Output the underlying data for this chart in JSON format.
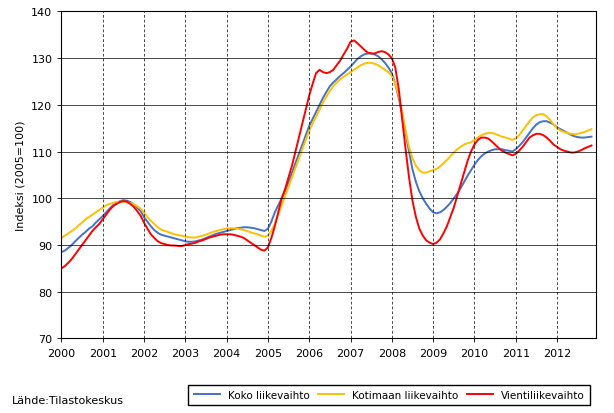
{
  "title": "",
  "ylabel": "Indeksi (2005=100)",
  "source_label": "Lähde:Tilastokeskus",
  "ylim": [
    70,
    140
  ],
  "yticks": [
    70,
    80,
    90,
    100,
    110,
    120,
    130,
    140
  ],
  "xtick_labels": [
    "2000",
    "2001",
    "2002",
    "2003",
    "2004",
    "2005",
    "2006",
    "2007",
    "2008",
    "2009",
    "2010",
    "2011",
    "2012"
  ],
  "legend_labels": [
    "Koko liikevaihto",
    "Kotimaan liikevaihto",
    "Vientiliikevaihto"
  ],
  "colors": [
    "#4472C4",
    "#FFC000",
    "#FF0000"
  ],
  "linewidth": 1.4,
  "koko": [
    88.5,
    88.8,
    89.4,
    90.0,
    90.8,
    91.5,
    92.2,
    92.8,
    93.5,
    94.0,
    94.8,
    95.5,
    96.2,
    97.0,
    97.8,
    98.5,
    99.0,
    99.4,
    99.6,
    99.5,
    99.2,
    98.7,
    98.0,
    97.3,
    96.0,
    95.0,
    94.0,
    93.2,
    92.6,
    92.2,
    92.0,
    91.8,
    91.6,
    91.4,
    91.2,
    91.0,
    90.8,
    90.7,
    90.7,
    90.8,
    91.0,
    91.2,
    91.5,
    91.8,
    92.1,
    92.4,
    92.6,
    92.8,
    93.0,
    93.2,
    93.4,
    93.6,
    93.7,
    93.8,
    93.8,
    93.7,
    93.6,
    93.4,
    93.2,
    93.0,
    93.5,
    95.0,
    97.0,
    98.5,
    100.0,
    101.5,
    103.5,
    105.5,
    107.5,
    109.5,
    111.5,
    113.5,
    115.5,
    117.0,
    118.5,
    120.0,
    121.5,
    122.8,
    124.0,
    124.8,
    125.5,
    126.2,
    126.8,
    127.5,
    128.2,
    129.0,
    129.8,
    130.4,
    130.8,
    131.0,
    131.0,
    130.8,
    130.4,
    129.8,
    129.0,
    128.0,
    126.8,
    124.5,
    121.5,
    118.0,
    114.0,
    110.0,
    106.2,
    103.5,
    101.5,
    100.0,
    98.8,
    97.8,
    97.0,
    96.8,
    97.0,
    97.5,
    98.2,
    99.0,
    100.0,
    101.0,
    102.2,
    103.5,
    104.8,
    106.0,
    107.2,
    108.2,
    109.0,
    109.6,
    110.0,
    110.3,
    110.5,
    110.5,
    110.5,
    110.3,
    110.2,
    110.0,
    110.5,
    111.2,
    112.0,
    113.0,
    114.0,
    115.0,
    115.8,
    116.3,
    116.5,
    116.5,
    116.2,
    115.8,
    115.2,
    114.8,
    114.4,
    114.0,
    113.6,
    113.3,
    113.1,
    113.0,
    113.0,
    113.1,
    113.2
  ],
  "kotimaan": [
    91.5,
    92.0,
    92.5,
    93.0,
    93.5,
    94.2,
    94.8,
    95.5,
    96.0,
    96.5,
    97.0,
    97.5,
    98.0,
    98.5,
    98.8,
    99.0,
    99.2,
    99.3,
    99.3,
    99.2,
    99.0,
    98.7,
    98.3,
    97.8,
    97.0,
    96.0,
    95.2,
    94.5,
    93.8,
    93.3,
    93.0,
    92.8,
    92.5,
    92.3,
    92.1,
    92.0,
    91.8,
    91.7,
    91.6,
    91.6,
    91.8,
    92.0,
    92.2,
    92.5,
    92.8,
    93.0,
    93.2,
    93.4,
    93.5,
    93.6,
    93.6,
    93.5,
    93.4,
    93.2,
    93.0,
    92.7,
    92.5,
    92.3,
    92.0,
    91.8,
    92.0,
    93.0,
    94.5,
    96.5,
    98.5,
    100.5,
    102.5,
    104.5,
    106.5,
    108.5,
    110.5,
    112.5,
    114.5,
    116.0,
    117.5,
    119.0,
    120.5,
    121.8,
    123.0,
    124.0,
    124.8,
    125.5,
    126.0,
    126.5,
    127.0,
    127.5,
    128.0,
    128.5,
    128.8,
    129.0,
    129.0,
    128.8,
    128.5,
    128.0,
    127.5,
    127.0,
    126.2,
    124.5,
    122.0,
    118.5,
    114.5,
    111.0,
    108.5,
    107.0,
    106.0,
    105.5,
    105.5,
    105.8,
    106.0,
    106.3,
    106.8,
    107.5,
    108.2,
    109.0,
    109.8,
    110.5,
    111.0,
    111.5,
    111.8,
    112.0,
    112.5,
    113.0,
    113.5,
    113.8,
    114.0,
    114.0,
    113.8,
    113.5,
    113.2,
    113.0,
    112.8,
    112.5,
    112.8,
    113.5,
    114.5,
    115.5,
    116.5,
    117.3,
    117.8,
    118.0,
    118.0,
    117.5,
    116.8,
    115.8,
    115.0,
    114.5,
    114.2,
    114.0,
    113.8,
    113.7,
    113.8,
    114.0,
    114.2,
    114.5,
    114.8
  ],
  "vienti": [
    85.0,
    85.5,
    86.2,
    87.0,
    88.0,
    89.0,
    90.0,
    91.0,
    92.0,
    93.0,
    93.8,
    94.5,
    95.5,
    96.5,
    97.5,
    98.3,
    98.8,
    99.2,
    99.4,
    99.3,
    98.8,
    98.2,
    97.3,
    96.3,
    94.8,
    93.5,
    92.3,
    91.5,
    90.8,
    90.4,
    90.2,
    90.0,
    89.9,
    89.9,
    89.8,
    89.8,
    90.0,
    90.2,
    90.3,
    90.5,
    90.8,
    91.0,
    91.3,
    91.6,
    91.8,
    92.0,
    92.2,
    92.3,
    92.3,
    92.3,
    92.2,
    92.0,
    91.8,
    91.5,
    91.0,
    90.5,
    90.0,
    89.5,
    89.0,
    88.8,
    89.5,
    91.5,
    94.0,
    97.0,
    100.0,
    102.0,
    104.5,
    107.0,
    110.0,
    113.0,
    116.0,
    119.0,
    122.0,
    124.5,
    126.8,
    127.5,
    127.0,
    126.8,
    127.0,
    127.5,
    128.5,
    129.5,
    130.8,
    132.0,
    133.5,
    133.8,
    133.2,
    132.5,
    131.8,
    131.2,
    131.0,
    131.0,
    131.3,
    131.5,
    131.3,
    130.8,
    130.0,
    128.0,
    123.5,
    117.0,
    110.5,
    104.5,
    99.5,
    96.0,
    93.5,
    92.0,
    91.0,
    90.5,
    90.2,
    90.5,
    91.2,
    92.5,
    94.0,
    96.0,
    98.0,
    100.5,
    103.0,
    105.5,
    108.0,
    110.0,
    111.5,
    112.5,
    113.0,
    113.0,
    112.8,
    112.2,
    111.5,
    110.8,
    110.2,
    109.8,
    109.5,
    109.2,
    109.5,
    110.2,
    111.0,
    112.0,
    113.0,
    113.5,
    113.8,
    113.8,
    113.5,
    113.0,
    112.3,
    111.5,
    111.0,
    110.5,
    110.2,
    110.0,
    109.8,
    109.8,
    110.0,
    110.3,
    110.7,
    111.0,
    111.3
  ],
  "n_months": 155,
  "start_year": 2000
}
